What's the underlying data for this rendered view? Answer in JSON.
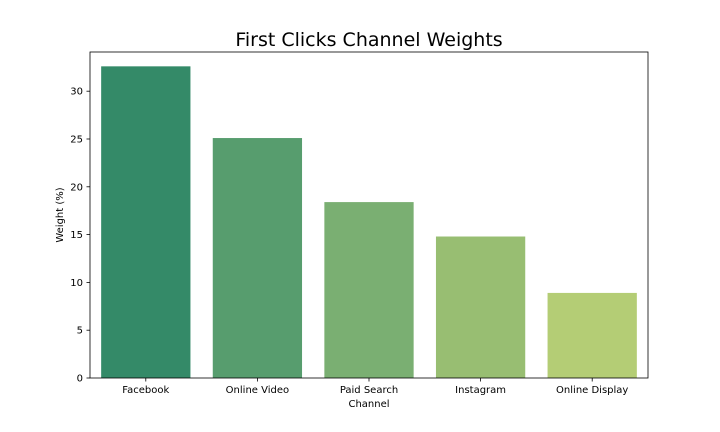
{
  "chart_data": {
    "type": "bar",
    "title": "First Clicks Channel Weights",
    "xlabel": "Channel",
    "ylabel": "Weight (%)",
    "categories": [
      "Facebook",
      "Online Video",
      "Paid Search",
      "Instagram",
      "Online Display"
    ],
    "values": [
      32.6,
      25.1,
      18.4,
      14.8,
      8.9
    ],
    "ylim": [
      0,
      34.1
    ],
    "yticks": [
      0,
      5,
      10,
      15,
      20,
      25,
      30
    ],
    "grid": false,
    "colors": [
      "#348a68",
      "#579d6e",
      "#7aaf72",
      "#98be72",
      "#b4cd75"
    ]
  }
}
